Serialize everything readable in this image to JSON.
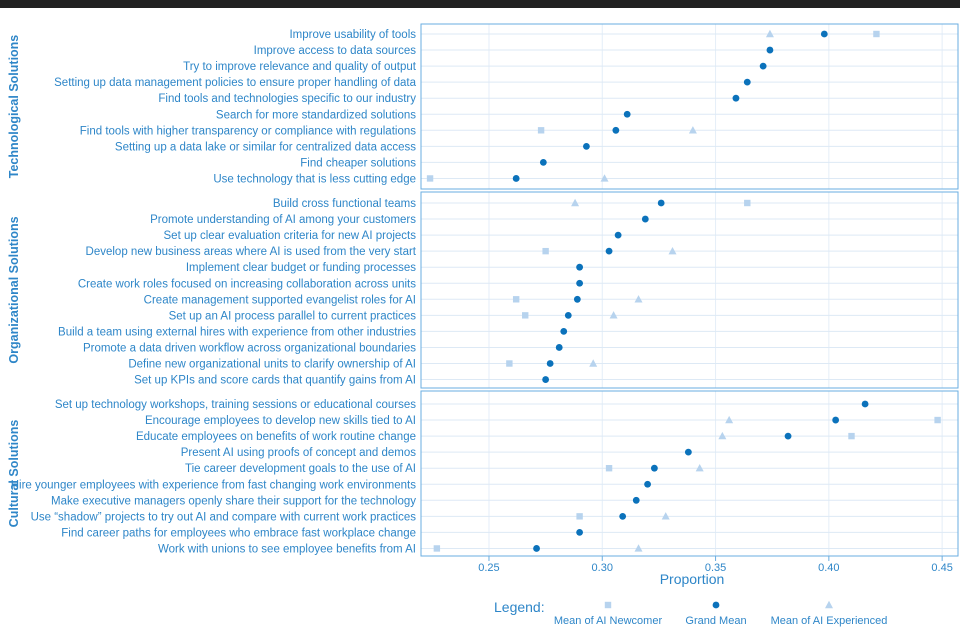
{
  "chart_data": {
    "type": "dot-plot",
    "xlabel": "Proportion",
    "xlim": [
      0.22,
      0.457
    ],
    "xticks": [
      0.25,
      0.3,
      0.35,
      0.4,
      0.45
    ],
    "xtick_labels": [
      "0.25",
      "0.30",
      "0.35",
      "0.40",
      "0.45"
    ],
    "grid": true,
    "series": [
      {
        "key": "newcomer",
        "name": "Mean of AI Newcomer",
        "marker": "square",
        "color": "#b7d3ee"
      },
      {
        "key": "grand",
        "name": "Grand Mean",
        "marker": "circle",
        "color": "#0b72bb"
      },
      {
        "key": "experienced",
        "name": "Mean of AI Experienced",
        "marker": "triangle",
        "color": "#b7d3ee"
      }
    ],
    "legend": {
      "title": "Legend:",
      "position": "bottom"
    },
    "panels": [
      {
        "title": "Technological Solutions",
        "rows": [
          {
            "label": "Improve usability of tools",
            "grand": 0.398,
            "newcomer": 0.421,
            "experienced": 0.374
          },
          {
            "label": "Improve access to data sources",
            "grand": 0.374
          },
          {
            "label": "Try to improve relevance and quality of output",
            "grand": 0.371
          },
          {
            "label": "Setting up data management policies to ensure proper handling of data",
            "grand": 0.364
          },
          {
            "label": "Find tools and technologies specific to our industry",
            "grand": 0.359
          },
          {
            "label": "Search for more standardized solutions",
            "grand": 0.311
          },
          {
            "label": "Find tools with higher transparency or compliance with regulations",
            "grand": 0.306,
            "newcomer": 0.273,
            "experienced": 0.34
          },
          {
            "label": "Setting up a data lake or similar for centralized data access",
            "grand": 0.293
          },
          {
            "label": "Find cheaper solutions",
            "grand": 0.274
          },
          {
            "label": "Use technology that is less cutting edge",
            "grand": 0.262,
            "newcomer": 0.224,
            "experienced": 0.301
          }
        ]
      },
      {
        "title": "Organizational Solutions",
        "rows": [
          {
            "label": "Build cross functional teams",
            "grand": 0.326,
            "newcomer": 0.364,
            "experienced": 0.288
          },
          {
            "label": "Promote understanding of AI among your customers",
            "grand": 0.319
          },
          {
            "label": "Set up clear evaluation criteria for new AI projects",
            "grand": 0.307
          },
          {
            "label": "Develop new business areas where AI is used from the very start",
            "grand": 0.303,
            "newcomer": 0.275,
            "experienced": 0.331
          },
          {
            "label": "Implement clear budget or funding processes",
            "grand": 0.29
          },
          {
            "label": "Create work roles focused on increasing collaboration across units",
            "grand": 0.29
          },
          {
            "label": "Create management supported evangelist roles for AI",
            "grand": 0.289,
            "newcomer": 0.262,
            "experienced": 0.316
          },
          {
            "label": "Set up an AI process parallel to current practices",
            "grand": 0.285,
            "newcomer": 0.266,
            "experienced": 0.305
          },
          {
            "label": "Build a team using external hires with experience from other industries",
            "grand": 0.283
          },
          {
            "label": "Promote a data driven workflow across organizational boundaries",
            "grand": 0.281
          },
          {
            "label": "Define new organizational units to clarify ownership of AI",
            "grand": 0.277,
            "newcomer": 0.259,
            "experienced": 0.296
          },
          {
            "label": "Set up KPIs and score cards that quantify gains from AI",
            "grand": 0.275
          }
        ]
      },
      {
        "title": "Cultural Solutions",
        "rows": [
          {
            "label": "Set up technology workshops, training sessions or educational courses",
            "grand": 0.416
          },
          {
            "label": "Encourage employees to develop new skills tied to AI",
            "grand": 0.403,
            "newcomer": 0.448,
            "experienced": 0.356
          },
          {
            "label": "Educate employees on benefits of work routine change",
            "grand": 0.382,
            "newcomer": 0.41,
            "experienced": 0.353
          },
          {
            "label": "Present AI using proofs of concept and demos",
            "grand": 0.338
          },
          {
            "label": "Tie career development goals to the use of AI",
            "grand": 0.323,
            "newcomer": 0.303,
            "experienced": 0.343
          },
          {
            "label": "Hire younger employees with experience from fast changing work environments",
            "grand": 0.32
          },
          {
            "label": "Make executive managers openly share their support for the technology",
            "grand": 0.315
          },
          {
            "label": "Use “shadow” projects to try out AI and compare with current work practices",
            "grand": 0.309,
            "newcomer": 0.29,
            "experienced": 0.328
          },
          {
            "label": "Find career paths for employees who embrace fast workplace change",
            "grand": 0.29
          },
          {
            "label": "Work with unions to see employee benefits from AI",
            "grand": 0.271,
            "newcomer": 0.227,
            "experienced": 0.316
          }
        ]
      }
    ]
  }
}
